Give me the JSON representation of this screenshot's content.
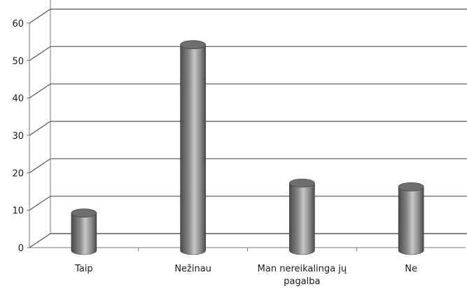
{
  "chart_data": {
    "type": "bar",
    "style": "3d-cylinder",
    "title": "",
    "xlabel": "",
    "ylabel": "",
    "categories": [
      "Taip",
      "Nežinau",
      "Man nereikalinga jų pagalba",
      "Ne"
    ],
    "category_label_lines": [
      [
        "Taip"
      ],
      [
        "Nežinau"
      ],
      [
        "Man nereikalinga jų",
        "pagalba"
      ],
      [
        "Ne"
      ]
    ],
    "values": [
      10,
      55,
      18,
      17
    ],
    "ylim": [
      0,
      60
    ],
    "yticks": [
      0,
      10,
      20,
      30,
      40,
      50,
      60
    ],
    "grid": true,
    "legend": "none",
    "colors": {
      "bar_dark": "#4a4a4a",
      "bar_mid": "#8a8a8a",
      "bar_light": "#c8c8c8",
      "bar_top": "#6e6e6e",
      "gridline": "#555555",
      "axis": "#777777"
    }
  }
}
